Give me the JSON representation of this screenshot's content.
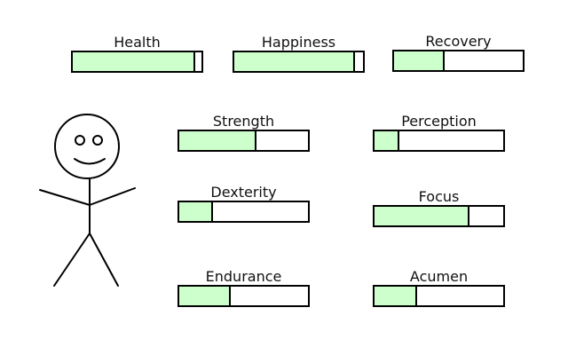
{
  "colors": {
    "fill": "#ccffcc",
    "border": "#000000",
    "empty": "#ffffff"
  },
  "stats": {
    "health": {
      "label": "Health",
      "value": 0.95
    },
    "happiness": {
      "label": "Happiness",
      "value": 0.94
    },
    "recovery": {
      "label": "Recovery",
      "value": 0.39
    },
    "strength": {
      "label": "Strength",
      "value": 0.6
    },
    "perception": {
      "label": "Perception",
      "value": 0.19
    },
    "dexterity": {
      "label": "Dexterity",
      "value": 0.26
    },
    "focus": {
      "label": "Focus",
      "value": 0.74
    },
    "endurance": {
      "label": "Endurance",
      "value": 0.4
    },
    "acumen": {
      "label": "Acumen",
      "value": 0.33
    }
  },
  "character": {
    "icon": "stick-figure-icon",
    "expression": "smiling"
  }
}
